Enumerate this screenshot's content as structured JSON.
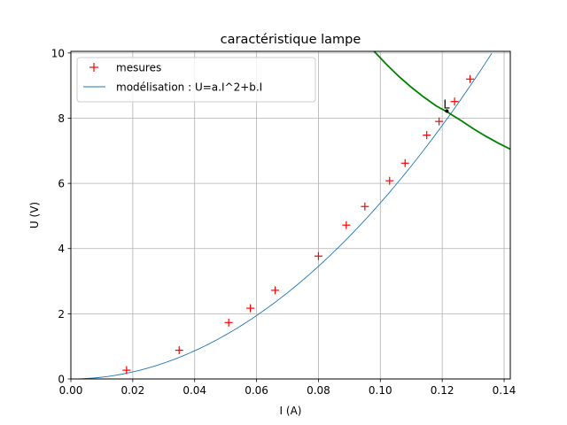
{
  "chart_data": {
    "type": "scatter",
    "title": "caractéristique lampe",
    "xlabel": "I (A)",
    "ylabel": "U (V)",
    "xlim": [
      0.0,
      0.142
    ],
    "ylim": [
      0,
      10.05
    ],
    "xticks": [
      0.0,
      0.02,
      0.04,
      0.06,
      0.08,
      0.1,
      0.12,
      0.14
    ],
    "xtick_labels": [
      "0.00",
      "0.02",
      "0.04",
      "0.06",
      "0.08",
      "0.10",
      "0.12",
      "0.14"
    ],
    "yticks": [
      0,
      2,
      4,
      6,
      8,
      10
    ],
    "ytick_labels": [
      "0",
      "2",
      "4",
      "6",
      "8",
      "10"
    ],
    "grid": true,
    "legend_position": "top-left",
    "series": [
      {
        "name": "mesures",
        "kind": "markers",
        "marker": "+",
        "color": "#ff0000",
        "x": [
          0.018,
          0.035,
          0.051,
          0.058,
          0.066,
          0.08,
          0.089,
          0.095,
          0.103,
          0.108,
          0.115,
          0.119,
          0.124,
          0.129
        ],
        "y": [
          0.27,
          0.88,
          1.73,
          2.17,
          2.72,
          3.77,
          4.72,
          5.29,
          6.08,
          6.62,
          7.48,
          7.9,
          8.51,
          9.2
        ]
      },
      {
        "name": "modélisation : U=a.I^2+b.I",
        "kind": "line",
        "color": "#1f77b4",
        "model": {
          "a": 540,
          "b": 0.0
        },
        "x_range": [
          0.0,
          0.136
        ]
      },
      {
        "kind": "line",
        "color": "#008000",
        "x": [
          0.098,
          0.102,
          0.106,
          0.11,
          0.114,
          0.118,
          0.122,
          0.126,
          0.13,
          0.134,
          0.138,
          0.142
        ],
        "y": [
          10.05,
          9.65,
          9.28,
          8.95,
          8.65,
          8.38,
          8.17,
          7.93,
          7.68,
          7.45,
          7.24,
          7.05
        ]
      }
    ],
    "annotations": [
      {
        "text": "L",
        "x": 0.1215,
        "y": 8.22
      }
    ]
  }
}
